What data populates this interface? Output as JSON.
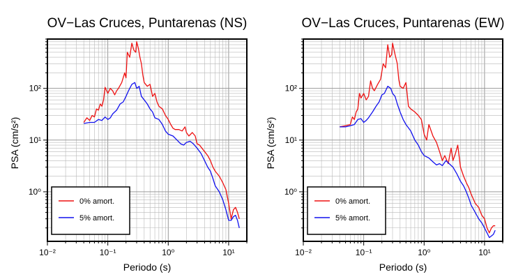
{
  "chart_data": [
    {
      "type": "line",
      "title": "OV−Las Cruces, Puntarenas (NS)",
      "xlabel": "Periodo (s)",
      "ylabel": "PSA (cm/s²)",
      "xscale": "log",
      "yscale": "log",
      "xlim": [
        0.01,
        20
      ],
      "ylim": [
        0.11,
        900
      ],
      "xticks": [
        {
          "value": 0.01,
          "label": "10⁻²"
        },
        {
          "value": 0.1,
          "label": "10⁻¹"
        },
        {
          "value": 1,
          "label": "10⁰"
        },
        {
          "value": 10,
          "label": "10¹"
        }
      ],
      "yticks": [
        {
          "value": 1,
          "label": "10⁰"
        },
        {
          "value": 10,
          "label": "10¹"
        },
        {
          "value": 100,
          "label": "10²"
        }
      ],
      "grid": true,
      "legend_position": "bottom-left",
      "series": [
        {
          "name": "0% amort.",
          "color": "#ee1111",
          "x": [
            0.04,
            0.045,
            0.05,
            0.055,
            0.06,
            0.065,
            0.07,
            0.075,
            0.08,
            0.085,
            0.09,
            0.1,
            0.11,
            0.12,
            0.13,
            0.14,
            0.15,
            0.17,
            0.19,
            0.2,
            0.21,
            0.23,
            0.25,
            0.27,
            0.29,
            0.3,
            0.32,
            0.34,
            0.36,
            0.38,
            0.4,
            0.45,
            0.5,
            0.55,
            0.6,
            0.65,
            0.7,
            0.8,
            0.9,
            1.0,
            1.1,
            1.2,
            1.3,
            1.5,
            1.7,
            1.9,
            2.0,
            2.2,
            2.5,
            2.8,
            3.0,
            3.3,
            3.6,
            4.0,
            4.5,
            5.0,
            5.5,
            6.0,
            7.0,
            8.0,
            9.0,
            10.0,
            11.0,
            12.0,
            13.0,
            14.0,
            15.0
          ],
          "y": [
            22,
            27,
            24,
            30,
            28,
            40,
            38,
            50,
            45,
            60,
            105,
            80,
            100,
            90,
            75,
            90,
            100,
            130,
            200,
            160,
            500,
            400,
            750,
            550,
            500,
            800,
            600,
            400,
            300,
            180,
            130,
            110,
            120,
            70,
            80,
            55,
            45,
            40,
            30,
            25,
            20,
            17,
            16,
            16,
            15,
            18,
            14,
            12,
            14,
            12,
            8.5,
            8,
            7,
            6,
            5,
            4,
            3,
            2.5,
            2,
            1.5,
            1.1,
            0.6,
            0.3,
            0.45,
            0.5,
            0.4,
            0.3
          ]
        },
        {
          "name": "5% amort.",
          "color": "#1111ee",
          "x": [
            0.04,
            0.05,
            0.06,
            0.07,
            0.08,
            0.09,
            0.1,
            0.11,
            0.12,
            0.14,
            0.16,
            0.18,
            0.2,
            0.22,
            0.25,
            0.28,
            0.3,
            0.33,
            0.36,
            0.4,
            0.45,
            0.5,
            0.55,
            0.6,
            0.7,
            0.8,
            0.9,
            1.0,
            1.2,
            1.4,
            1.6,
            1.8,
            2.0,
            2.3,
            2.6,
            3.0,
            3.5,
            4.0,
            4.5,
            5.0,
            5.5,
            6.0,
            7.0,
            8.0,
            9.0,
            10.0,
            11.0,
            12.0,
            13.0,
            14.0,
            15.0
          ],
          "y": [
            21,
            22,
            22,
            25,
            24,
            28,
            25,
            27,
            32,
            38,
            50,
            55,
            70,
            90,
            120,
            130,
            100,
            110,
            70,
            60,
            50,
            40,
            35,
            27,
            25,
            20,
            15,
            13,
            12,
            10,
            8.5,
            8,
            9,
            9.5,
            8.5,
            7,
            5.5,
            4,
            3,
            2.5,
            1.8,
            1.3,
            1.0,
            0.7,
            0.45,
            0.28,
            0.28,
            0.33,
            0.35,
            0.28,
            0.2
          ]
        }
      ]
    },
    {
      "type": "line",
      "title": "OV−Las Cruces, Puntarenas (EW)",
      "xlabel": "Periodo (s)",
      "ylabel": "PSA (cm/s²)",
      "xscale": "log",
      "yscale": "log",
      "xlim": [
        0.01,
        20
      ],
      "ylim": [
        0.11,
        900
      ],
      "xticks": [
        {
          "value": 0.01,
          "label": "10⁻²"
        },
        {
          "value": 0.1,
          "label": "10⁻¹"
        },
        {
          "value": 1,
          "label": "10⁰"
        },
        {
          "value": 10,
          "label": "10¹"
        }
      ],
      "yticks": [
        {
          "value": 1,
          "label": "10⁰"
        },
        {
          "value": 10,
          "label": "10¹"
        },
        {
          "value": 100,
          "label": "10²"
        }
      ],
      "grid": true,
      "legend_position": "bottom-left",
      "series": [
        {
          "name": "0% amort.",
          "color": "#ee1111",
          "x": [
            0.04,
            0.05,
            0.06,
            0.065,
            0.07,
            0.075,
            0.08,
            0.085,
            0.09,
            0.1,
            0.11,
            0.12,
            0.13,
            0.14,
            0.15,
            0.17,
            0.19,
            0.21,
            0.23,
            0.25,
            0.27,
            0.29,
            0.3,
            0.33,
            0.36,
            0.38,
            0.4,
            0.45,
            0.5,
            0.55,
            0.6,
            0.7,
            0.8,
            0.9,
            1.0,
            1.1,
            1.2,
            1.4,
            1.6,
            1.8,
            2.0,
            2.2,
            2.5,
            2.8,
            3.0,
            3.3,
            3.6,
            4.0,
            4.5,
            5.0,
            5.5,
            6.0,
            7.0,
            8.0,
            9.0,
            10.0,
            11.0,
            12.0,
            13.0,
            14.0,
            15.0
          ],
          "y": [
            18,
            19,
            20,
            28,
            25,
            35,
            40,
            80,
            65,
            80,
            60,
            70,
            140,
            100,
            90,
            120,
            150,
            300,
            250,
            700,
            400,
            450,
            750,
            450,
            300,
            150,
            110,
            100,
            130,
            45,
            40,
            35,
            30,
            25,
            13,
            10,
            20,
            12,
            9,
            6,
            4,
            5,
            3.5,
            7,
            4,
            5.5,
            8,
            3,
            2,
            1.5,
            1.2,
            0.9,
            0.6,
            0.5,
            0.35,
            0.3,
            0.2,
            0.16,
            0.2,
            0.22,
            0.22
          ]
        },
        {
          "name": "5% amort.",
          "color": "#1111ee",
          "x": [
            0.04,
            0.05,
            0.06,
            0.07,
            0.08,
            0.09,
            0.1,
            0.11,
            0.12,
            0.14,
            0.16,
            0.18,
            0.2,
            0.22,
            0.25,
            0.28,
            0.3,
            0.33,
            0.36,
            0.4,
            0.45,
            0.5,
            0.6,
            0.7,
            0.8,
            0.9,
            1.0,
            1.2,
            1.4,
            1.6,
            1.8,
            2.0,
            2.3,
            2.6,
            3.0,
            3.5,
            4.0,
            4.5,
            5.0,
            5.5,
            6.0,
            7.0,
            8.0,
            9.0,
            10.0,
            11.0,
            12.0,
            13.0,
            14.0,
            15.0
          ],
          "y": [
            18,
            18,
            19,
            20,
            25,
            26,
            22,
            24,
            27,
            35,
            45,
            55,
            75,
            80,
            110,
            100,
            80,
            70,
            50,
            35,
            25,
            20,
            15,
            10,
            8,
            6,
            5,
            4.5,
            3.8,
            3.3,
            3.5,
            3.2,
            4,
            3.5,
            3,
            2.2,
            1.6,
            1.3,
            1.0,
            0.75,
            0.55,
            0.4,
            0.3,
            0.25,
            0.2,
            0.16,
            0.13,
            0.14,
            0.15,
            0.18
          ]
        }
      ]
    }
  ]
}
